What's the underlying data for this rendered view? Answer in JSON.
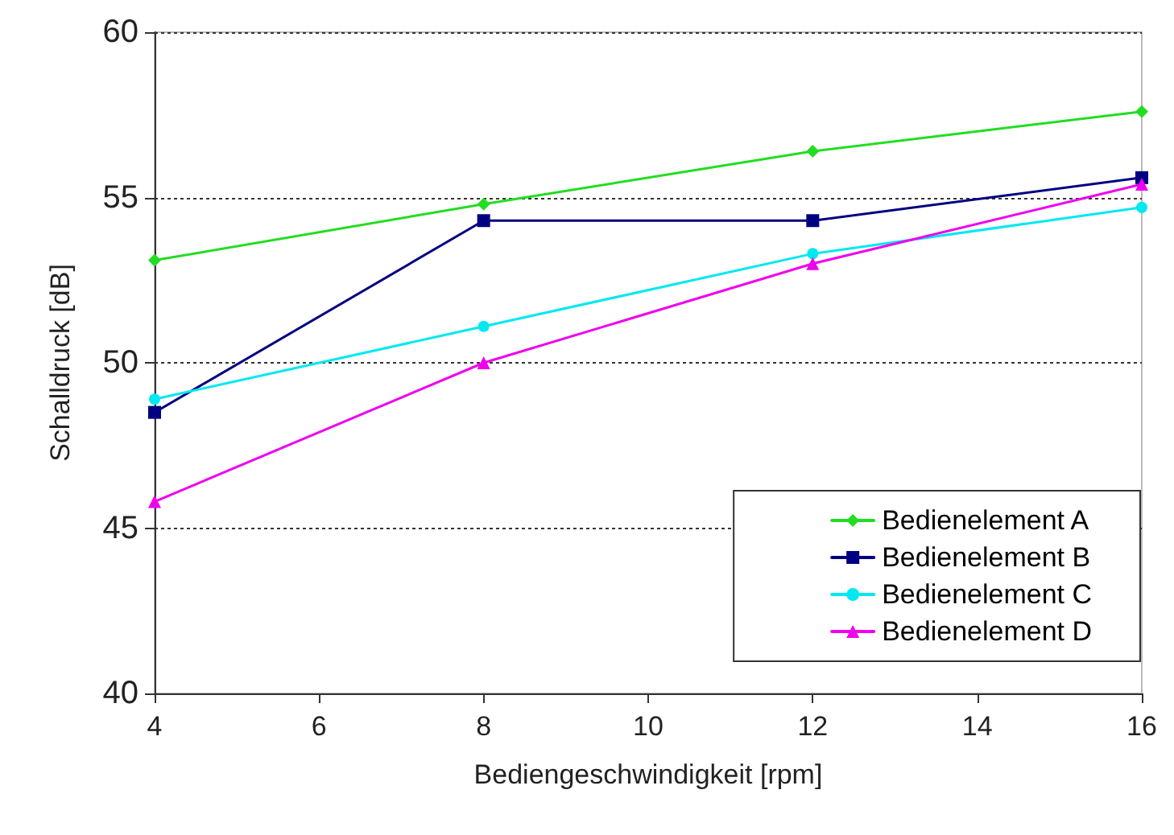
{
  "chart_data": {
    "type": "line",
    "xlabel": "Bediengeschwindigkeit [rpm]",
    "ylabel": "Schalldruck [dB]",
    "x": [
      4,
      8,
      12,
      16
    ],
    "xlim": [
      4,
      16
    ],
    "xticks": [
      4,
      6,
      8,
      10,
      12,
      14,
      16
    ],
    "ylim": [
      40,
      60
    ],
    "yticks": [
      40,
      45,
      50,
      55,
      60
    ],
    "grid": "y",
    "legend": "bottom right",
    "series": [
      {
        "name": "Bedienelement A",
        "color": "#22dd22",
        "marker": "diamond",
        "values": [
          53.1,
          54.8,
          56.4,
          57.6
        ]
      },
      {
        "name": "Bedienelement B",
        "color": "#000080",
        "marker": "square",
        "values": [
          48.5,
          54.3,
          54.3,
          55.6
        ]
      },
      {
        "name": "Bedienelement C",
        "color": "#00e8f0",
        "marker": "circle",
        "values": [
          48.9,
          51.1,
          53.3,
          54.7
        ]
      },
      {
        "name": "Bedienelement D",
        "color": "#ee00ee",
        "marker": "triangle",
        "values": [
          45.8,
          50.0,
          53.0,
          55.4
        ]
      }
    ]
  }
}
